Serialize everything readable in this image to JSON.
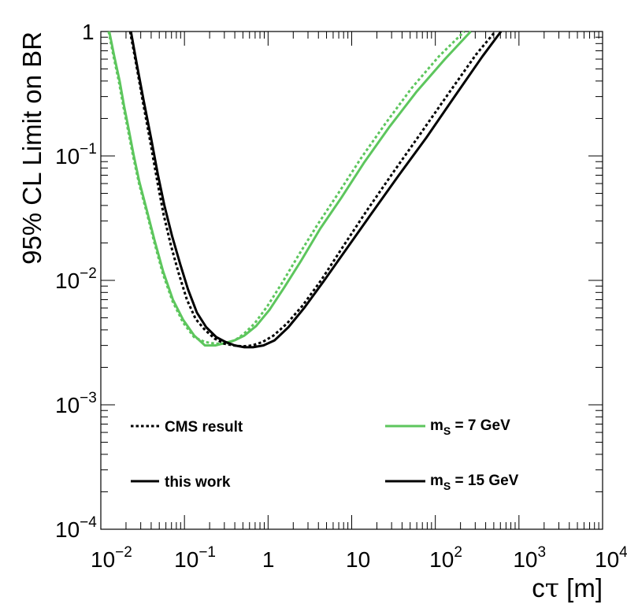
{
  "chart_data": {
    "type": "line",
    "xlabel": "cτ [m]",
    "ylabel": "95% CL Limit on BR",
    "x_scale": "log",
    "y_scale": "log",
    "xlim": [
      0.01,
      10000
    ],
    "ylim": [
      0.0001,
      1
    ],
    "grid": false,
    "x_ticks": [
      {
        "value": 0.01,
        "base": "10",
        "exp": "−2"
      },
      {
        "value": 0.1,
        "base": "10",
        "exp": "−1"
      },
      {
        "value": 1,
        "base": "1",
        "exp": ""
      },
      {
        "value": 10,
        "base": "10",
        "exp": ""
      },
      {
        "value": 100,
        "base": "10",
        "exp": "2"
      },
      {
        "value": 1000,
        "base": "10",
        "exp": "3"
      },
      {
        "value": 10000,
        "base": "10",
        "exp": "4"
      }
    ],
    "y_ticks": [
      {
        "value": 0.0001,
        "base": "10",
        "exp": "−4"
      },
      {
        "value": 0.001,
        "base": "10",
        "exp": "−3"
      },
      {
        "value": 0.01,
        "base": "10",
        "exp": "−2"
      },
      {
        "value": 0.1,
        "base": "10",
        "exp": "−1"
      },
      {
        "value": 1,
        "base": "1",
        "exp": ""
      }
    ],
    "legend": {
      "style_entries": [
        {
          "label": "CMS result",
          "dash": "dotted"
        },
        {
          "label": "this work",
          "dash": "solid"
        }
      ],
      "mass_entries": [
        {
          "label_main": "m",
          "label_sub": "S",
          "label_rest": " = 7 GeV",
          "color": "#5dc65d"
        },
        {
          "label_main": "m",
          "label_sub": "S",
          "label_rest": " = 15 GeV",
          "color": "#000000"
        }
      ]
    },
    "series": [
      {
        "mass": "7 GeV",
        "style": "solid",
        "color": "#5dc65d",
        "x": [
          0.0126,
          0.0145,
          0.0168,
          0.019,
          0.0213,
          0.0246,
          0.0289,
          0.0353,
          0.0437,
          0.0556,
          0.0728,
          0.0968,
          0.131,
          0.176,
          0.236,
          0.31,
          0.398,
          0.52,
          0.72,
          1.04,
          1.55,
          2.5,
          4.2,
          7.5,
          14,
          28,
          60,
          130,
          265
        ],
        "y": [
          1.0,
          0.63,
          0.4,
          0.25,
          0.17,
          0.103,
          0.062,
          0.037,
          0.0212,
          0.0118,
          0.007,
          0.0048,
          0.0036,
          0.003,
          0.003,
          0.00315,
          0.0033,
          0.0036,
          0.0043,
          0.0058,
          0.0087,
          0.0145,
          0.026,
          0.046,
          0.088,
          0.17,
          0.33,
          0.6,
          1.0
        ]
      },
      {
        "mass": "7 GeV",
        "style": "dotted",
        "color": "#5dc65d",
        "x": [
          0.0124,
          0.0142,
          0.0164,
          0.0186,
          0.021,
          0.0243,
          0.0286,
          0.035,
          0.0433,
          0.055,
          0.072,
          0.096,
          0.13,
          0.175,
          0.235,
          0.31,
          0.4,
          0.51,
          0.69,
          0.98,
          1.45,
          2.3,
          3.9,
          6.9,
          12.8,
          25,
          52,
          110,
          222
        ],
        "y": [
          1.0,
          0.63,
          0.4,
          0.25,
          0.165,
          0.1,
          0.06,
          0.036,
          0.0205,
          0.0114,
          0.0068,
          0.0046,
          0.0035,
          0.0032,
          0.0031,
          0.0031,
          0.0033,
          0.0037,
          0.0045,
          0.0062,
          0.0094,
          0.0158,
          0.028,
          0.05,
          0.095,
          0.18,
          0.35,
          0.63,
          1.0
        ]
      },
      {
        "mass": "15 GeV",
        "style": "solid",
        "color": "#000000",
        "x": [
          0.0229,
          0.0269,
          0.0325,
          0.0398,
          0.0481,
          0.0575,
          0.0708,
          0.0891,
          0.11,
          0.141,
          0.182,
          0.24,
          0.31,
          0.4,
          0.52,
          0.66,
          0.88,
          1.2,
          1.75,
          2.7,
          4.6,
          8.7,
          17,
          36,
          78,
          170,
          365,
          610
        ],
        "y": [
          1.0,
          0.55,
          0.28,
          0.14,
          0.071,
          0.04,
          0.023,
          0.0135,
          0.0085,
          0.0055,
          0.0042,
          0.0035,
          0.0032,
          0.003,
          0.0029,
          0.0029,
          0.003,
          0.0033,
          0.0042,
          0.006,
          0.0098,
          0.018,
          0.034,
          0.069,
          0.14,
          0.3,
          0.63,
          1.0
        ]
      },
      {
        "mass": "15 GeV",
        "style": "dotted",
        "color": "#000000",
        "x": [
          0.0224,
          0.0264,
          0.0319,
          0.039,
          0.0472,
          0.0562,
          0.069,
          0.086,
          0.107,
          0.136,
          0.176,
          0.23,
          0.3,
          0.39,
          0.5,
          0.65,
          0.86,
          1.16,
          1.68,
          2.6,
          4.3,
          8.0,
          15,
          31,
          66,
          145,
          305,
          520
        ],
        "y": [
          1.0,
          0.55,
          0.27,
          0.13,
          0.063,
          0.034,
          0.019,
          0.0112,
          0.007,
          0.0049,
          0.004,
          0.0034,
          0.0031,
          0.003,
          0.00295,
          0.003,
          0.0032,
          0.0036,
          0.0045,
          0.0063,
          0.01,
          0.019,
          0.036,
          0.073,
          0.15,
          0.32,
          0.65,
          1.0
        ]
      }
    ]
  }
}
